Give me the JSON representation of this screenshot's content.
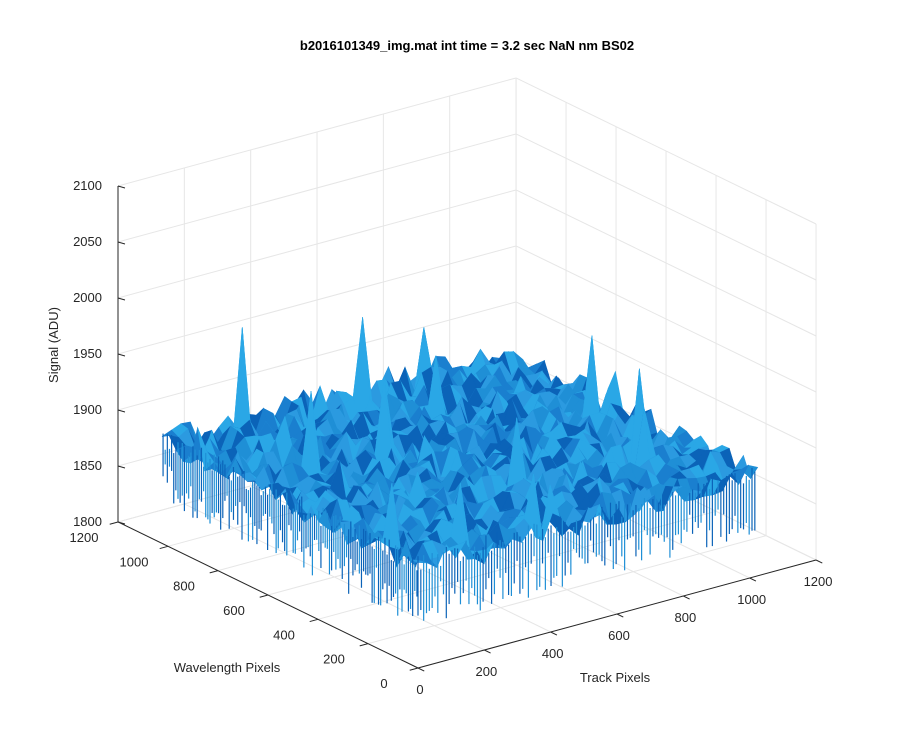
{
  "chart_data": {
    "type": "surface",
    "title": "b2016101349_img.mat int time = 3.2 sec  NaN nm BS02",
    "xlabel": "Track Pixels",
    "ylabel": "Wavelength Pixels",
    "zlabel": "Signal (ADU)",
    "xlim": [
      0,
      1200
    ],
    "ylim": [
      0,
      1200
    ],
    "zlim": [
      1800,
      2100
    ],
    "x_ticks": [
      "0",
      "200",
      "400",
      "600",
      "800",
      "1000",
      "1200"
    ],
    "y_ticks": [
      "0",
      "200",
      "400",
      "600",
      "800",
      "1000",
      "1200"
    ],
    "z_ticks": [
      "1800",
      "1850",
      "1900",
      "1950",
      "2000",
      "2050",
      "2100"
    ],
    "surface_extent": {
      "x": [
        0,
        1024
      ],
      "y": [
        0,
        1024
      ]
    },
    "surface_mean": 1890,
    "surface_noise_range": [
      1860,
      1920
    ],
    "surface_spikes_max": 1975,
    "grid": true,
    "colors": {
      "surface_base": "#1f8fd6",
      "surface_light": "#2aa7e6",
      "surface_dark": "#0b63b8",
      "grid": "#e6e6e6",
      "axis": "#262626"
    }
  }
}
